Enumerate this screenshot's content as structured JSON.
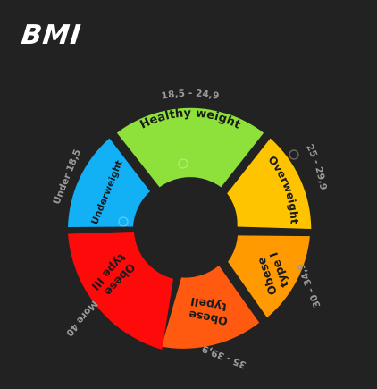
{
  "header": {
    "title": "BMI"
  },
  "wheel": {
    "segments": [
      {
        "key": "healthy",
        "label_lines": [
          "Healthy weight"
        ],
        "range": "18,5 - 24,9",
        "color": "#8ee03b"
      },
      {
        "key": "overweight",
        "label_lines": [
          "Overweight"
        ],
        "range": "25 - 29,9",
        "color": "#ffc400"
      },
      {
        "key": "obese1",
        "label_lines": [
          "Obese",
          "type I"
        ],
        "range": "30 - 34,9",
        "color": "#ff9a00"
      },
      {
        "key": "obese2",
        "label_lines": [
          "Obese",
          "typeII"
        ],
        "range": "35 - 39,9",
        "color": "#ff5a10"
      },
      {
        "key": "obese3",
        "label_lines": [
          "Obese",
          "type III"
        ],
        "range": "More 40",
        "color": "#ff0a0a"
      },
      {
        "key": "underweight",
        "label_lines": [
          "Underweight"
        ],
        "range": "Under 18,5",
        "color": "#12b0f5"
      }
    ]
  }
}
